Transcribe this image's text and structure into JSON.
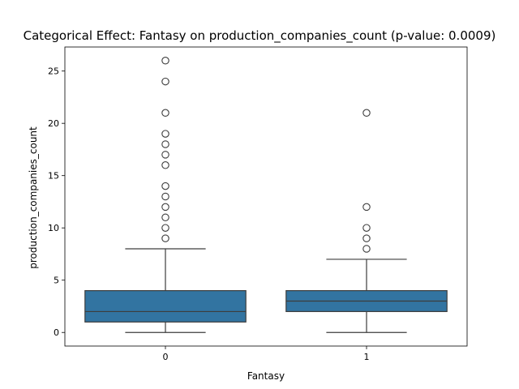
{
  "chart_data": {
    "type": "boxplot",
    "title": "Categorical Effect: Fantasy on production_companies_count (p-value: 0.0009)",
    "xlabel": "Fantasy",
    "ylabel": "production_companies_count",
    "categories": [
      "0",
      "1"
    ],
    "ylim": [
      -1.3,
      27.3
    ],
    "yticks": [
      0,
      5,
      10,
      15,
      20,
      25
    ],
    "box_color": "#3274a1",
    "line_color": "#3d3d3d",
    "grid": false,
    "boxes": [
      {
        "category": "0",
        "whisker_low": 0,
        "q1": 1,
        "median": 2,
        "q3": 4,
        "whisker_high": 8,
        "outliers": [
          9,
          10,
          11,
          12,
          13,
          14,
          16,
          17,
          18,
          19,
          21,
          24,
          26
        ]
      },
      {
        "category": "1",
        "whisker_low": 0,
        "q1": 2,
        "median": 3,
        "q3": 4,
        "whisker_high": 7,
        "outliers": [
          8,
          9,
          10,
          12,
          21
        ]
      }
    ]
  }
}
